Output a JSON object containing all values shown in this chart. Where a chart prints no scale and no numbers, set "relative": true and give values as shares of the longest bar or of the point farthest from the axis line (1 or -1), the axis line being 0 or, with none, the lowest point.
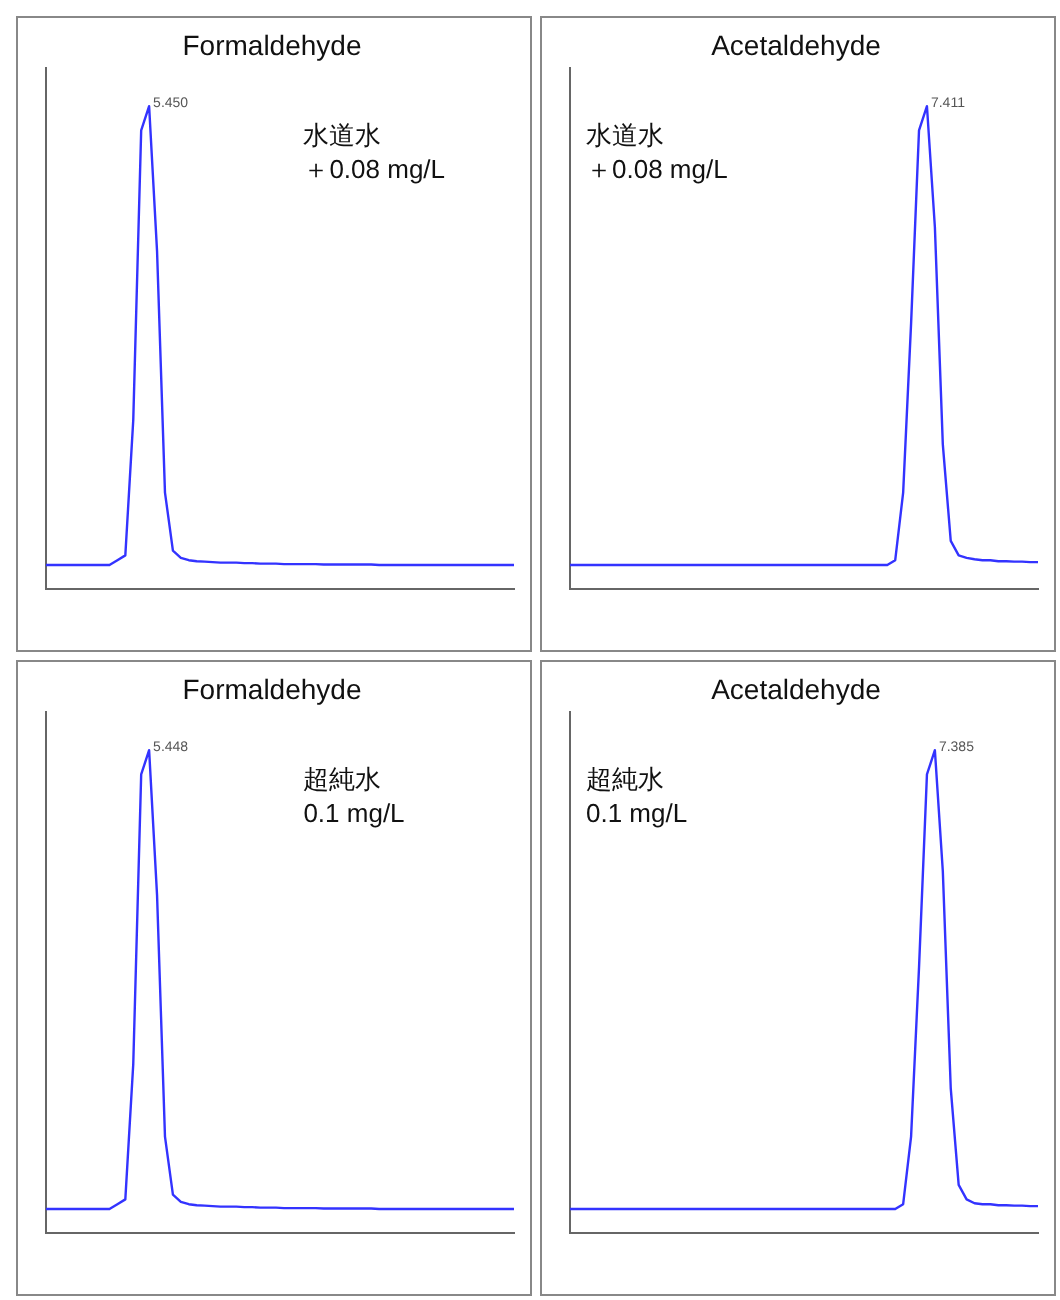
{
  "chart_data": [
    {
      "type": "line",
      "title": "Formaldehyde",
      "relative": true,
      "grid": false,
      "marker": "none",
      "line_style": "solid",
      "legend": false,
      "annotations": [
        "水道水",
        "＋0.08 mg/L",
        "5.450"
      ],
      "categories": [
        null,
        null,
        null,
        null,
        null,
        null,
        null,
        null,
        null,
        null,
        null,
        null,
        null,
        null,
        null,
        null,
        null,
        null,
        null,
        null,
        null,
        null,
        null,
        null,
        null,
        null,
        null,
        null,
        null,
        null,
        null,
        null,
        null,
        null,
        null,
        null,
        null,
        null,
        null,
        null,
        null,
        null,
        null,
        null,
        null,
        null,
        null,
        null,
        null,
        null,
        null,
        null,
        null,
        null,
        null,
        null,
        null,
        null,
        null,
        null
      ],
      "series": [
        {
          "color": "#3333ff",
          "values": [
            0.05,
            0.05,
            0.05,
            0.05,
            0.05,
            0.05,
            0.05,
            0.05,
            0.05,
            0.06,
            0.07,
            0.35,
            0.95,
            1,
            0.7,
            0.2,
            0.08,
            0.065,
            0.06,
            0.058,
            0.057,
            0.056,
            0.055,
            0.055,
            0.055,
            0.054,
            0.054,
            0.053,
            0.053,
            0.053,
            0.052,
            0.052,
            0.052,
            0.052,
            0.052,
            0.051,
            0.051,
            0.051,
            0.051,
            0.051,
            0.051,
            0.051,
            0.05,
            0.05,
            0.05,
            0.05,
            0.05,
            0.05,
            0.05,
            0.05,
            0.05,
            0.05,
            0.05,
            0.05,
            0.05,
            0.05,
            0.05,
            0.05,
            0.05,
            0.05
          ]
        }
      ]
    },
    {
      "type": "line",
      "title": "Acetaldehyde",
      "relative": true,
      "grid": false,
      "marker": "none",
      "line_style": "solid",
      "legend": false,
      "annotations": [
        "水道水",
        "＋0.08 mg/L",
        "7.411"
      ],
      "categories": [
        null,
        null,
        null,
        null,
        null,
        null,
        null,
        null,
        null,
        null,
        null,
        null,
        null,
        null,
        null,
        null,
        null,
        null,
        null,
        null,
        null,
        null,
        null,
        null,
        null,
        null,
        null,
        null,
        null,
        null,
        null,
        null,
        null,
        null,
        null,
        null,
        null,
        null,
        null,
        null,
        null,
        null,
        null,
        null,
        null,
        null,
        null,
        null,
        null,
        null,
        null,
        null,
        null,
        null,
        null,
        null,
        null,
        null,
        null,
        null
      ],
      "series": [
        {
          "color": "#3333ff",
          "values": [
            0.05,
            0.05,
            0.05,
            0.05,
            0.05,
            0.05,
            0.05,
            0.05,
            0.05,
            0.05,
            0.05,
            0.05,
            0.05,
            0.05,
            0.05,
            0.05,
            0.05,
            0.05,
            0.05,
            0.05,
            0.05,
            0.05,
            0.05,
            0.05,
            0.05,
            0.05,
            0.05,
            0.05,
            0.05,
            0.05,
            0.05,
            0.05,
            0.05,
            0.05,
            0.05,
            0.05,
            0.05,
            0.05,
            0.05,
            0.05,
            0.05,
            0.06,
            0.2,
            0.55,
            0.95,
            1,
            0.75,
            0.3,
            0.1,
            0.07,
            0.065,
            0.062,
            0.06,
            0.06,
            0.058,
            0.058,
            0.057,
            0.057,
            0.056,
            0.056
          ]
        }
      ]
    },
    {
      "type": "line",
      "title": "Formaldehyde",
      "relative": true,
      "grid": false,
      "marker": "none",
      "line_style": "solid",
      "legend": false,
      "annotations": [
        "超純水",
        "0.1 mg/L",
        "5.448"
      ],
      "categories": [
        null,
        null,
        null,
        null,
        null,
        null,
        null,
        null,
        null,
        null,
        null,
        null,
        null,
        null,
        null,
        null,
        null,
        null,
        null,
        null,
        null,
        null,
        null,
        null,
        null,
        null,
        null,
        null,
        null,
        null,
        null,
        null,
        null,
        null,
        null,
        null,
        null,
        null,
        null,
        null,
        null,
        null,
        null,
        null,
        null,
        null,
        null,
        null,
        null,
        null,
        null,
        null,
        null,
        null,
        null,
        null,
        null,
        null,
        null,
        null
      ],
      "series": [
        {
          "color": "#3333ff",
          "values": [
            0.05,
            0.05,
            0.05,
            0.05,
            0.05,
            0.05,
            0.05,
            0.05,
            0.05,
            0.06,
            0.07,
            0.35,
            0.95,
            1,
            0.7,
            0.2,
            0.08,
            0.065,
            0.06,
            0.058,
            0.057,
            0.056,
            0.055,
            0.055,
            0.055,
            0.054,
            0.054,
            0.053,
            0.053,
            0.053,
            0.052,
            0.052,
            0.052,
            0.052,
            0.052,
            0.051,
            0.051,
            0.051,
            0.051,
            0.051,
            0.051,
            0.051,
            0.05,
            0.05,
            0.05,
            0.05,
            0.05,
            0.05,
            0.05,
            0.05,
            0.05,
            0.05,
            0.05,
            0.05,
            0.05,
            0.05,
            0.05,
            0.05,
            0.05,
            0.05
          ]
        }
      ]
    },
    {
      "type": "line",
      "title": "Acetaldehyde",
      "relative": true,
      "grid": false,
      "marker": "none",
      "line_style": "solid",
      "legend": false,
      "annotations": [
        "超純水",
        "0.1 mg/L",
        "7.385"
      ],
      "categories": [
        null,
        null,
        null,
        null,
        null,
        null,
        null,
        null,
        null,
        null,
        null,
        null,
        null,
        null,
        null,
        null,
        null,
        null,
        null,
        null,
        null,
        null,
        null,
        null,
        null,
        null,
        null,
        null,
        null,
        null,
        null,
        null,
        null,
        null,
        null,
        null,
        null,
        null,
        null,
        null,
        null,
        null,
        null,
        null,
        null,
        null,
        null,
        null,
        null,
        null,
        null,
        null,
        null,
        null,
        null,
        null,
        null,
        null,
        null,
        null
      ],
      "series": [
        {
          "color": "#3333ff",
          "values": [
            0.05,
            0.05,
            0.05,
            0.05,
            0.05,
            0.05,
            0.05,
            0.05,
            0.05,
            0.05,
            0.05,
            0.05,
            0.05,
            0.05,
            0.05,
            0.05,
            0.05,
            0.05,
            0.05,
            0.05,
            0.05,
            0.05,
            0.05,
            0.05,
            0.05,
            0.05,
            0.05,
            0.05,
            0.05,
            0.05,
            0.05,
            0.05,
            0.05,
            0.05,
            0.05,
            0.05,
            0.05,
            0.05,
            0.05,
            0.05,
            0.05,
            0.05,
            0.06,
            0.2,
            0.55,
            0.95,
            1,
            0.75,
            0.3,
            0.1,
            0.07,
            0.062,
            0.06,
            0.06,
            0.058,
            0.058,
            0.057,
            0.057,
            0.056,
            0.056
          ]
        }
      ]
    }
  ]
}
